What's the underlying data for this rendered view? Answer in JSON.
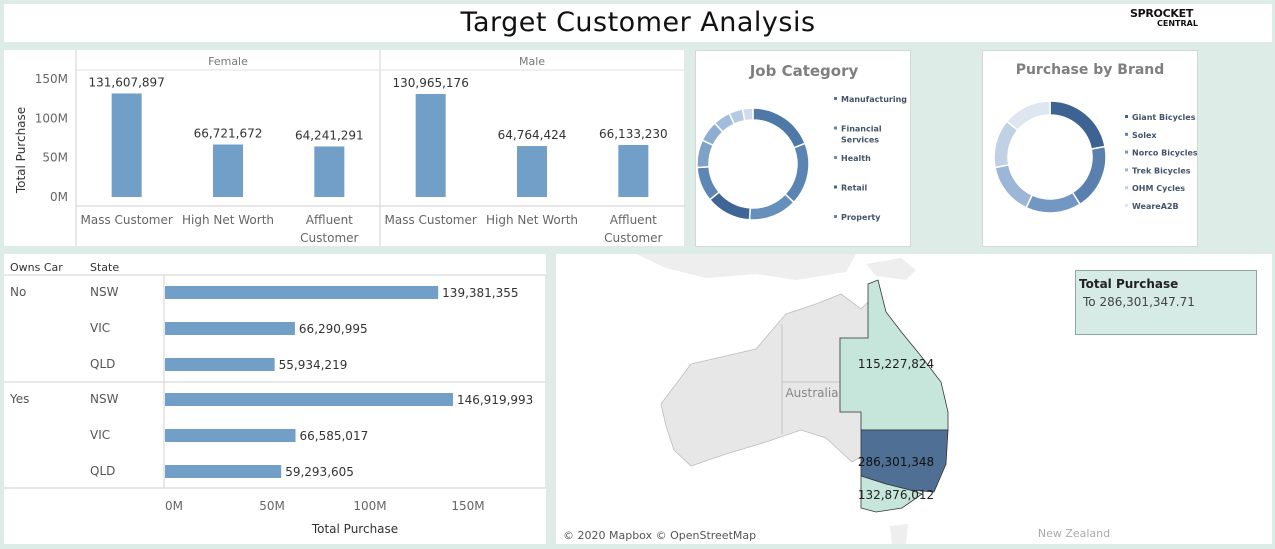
{
  "header": {
    "title": "Target Customer  Analysis",
    "logo_line1": "SPROCKET",
    "logo_line2": "CENTRAL"
  },
  "chart_data": [
    {
      "type": "bar",
      "panels": [
        "Female",
        "Male"
      ],
      "categories": [
        "Mass Customer",
        "High Net Worth",
        "Affluent Customer"
      ],
      "series": [
        {
          "name": "Female",
          "values": [
            131607897,
            66721672,
            64241291
          ],
          "labels": [
            "131,607,897",
            "66,721,672",
            "64,241,291"
          ]
        },
        {
          "name": "Male",
          "values": [
            130965176,
            64764424,
            66133230
          ],
          "labels": [
            "130,965,176",
            "64,764,424",
            "66,133,230"
          ]
        }
      ],
      "ylabel": "Total Purchase",
      "yticks": [
        "0M",
        "50M",
        "100M",
        "150M"
      ],
      "ytick_values": [
        0,
        50000000,
        100000000,
        150000000
      ],
      "ylim": [
        0,
        150000000
      ],
      "color": "#729fc7"
    },
    {
      "type": "pie",
      "title": "Job Category",
      "legend": [
        "Manufacturing",
        "Financial Services",
        "Health",
        "Retail",
        "Property"
      ],
      "values": [
        19,
        18,
        14,
        13,
        10,
        8,
        6,
        5,
        4,
        3
      ],
      "colors": [
        "#4e79a7",
        "#5a84b3",
        "#6690bc",
        "#3f6596",
        "#5c86b6",
        "#7fa2c9",
        "#8daed2",
        "#a1bddb",
        "#b6cbe3",
        "#cfdcec"
      ]
    },
    {
      "type": "pie",
      "title": "Purchase by Brand",
      "legend": [
        "Giant Bicycles",
        "Solex",
        "Norco Bicycles",
        "Trek Bicycles",
        "OHM Cycles",
        "WeareA2B"
      ],
      "values": [
        22,
        19,
        16,
        15,
        14,
        14
      ],
      "colors": [
        "#3d6393",
        "#5a80b0",
        "#7397c3",
        "#9cb6d7",
        "#c0d1e6",
        "#dde6f1"
      ]
    },
    {
      "type": "bar",
      "orientation": "horizontal",
      "row_headers": [
        "Owns Car",
        "State"
      ],
      "groups": [
        {
          "name": "No",
          "states": [
            "NSW",
            "VIC",
            "QLD"
          ],
          "values": [
            139381355,
            66290995,
            55934219
          ],
          "labels": [
            "139,381,355",
            "66,290,995",
            "55,934,219"
          ]
        },
        {
          "name": "Yes",
          "states": [
            "NSW",
            "VIC",
            "QLD"
          ],
          "values": [
            146919993,
            66585017,
            59293605
          ],
          "labels": [
            "146,919,993",
            "66,585,017",
            "59,293,605"
          ]
        }
      ],
      "xlabel": "Total Purchase",
      "xticks": [
        "0M",
        "50M",
        "100M",
        "150M"
      ],
      "xtick_values": [
        0,
        50000000,
        100000000,
        150000000
      ],
      "xlim": [
        0,
        150000000
      ],
      "color": "#729fc7"
    }
  ],
  "map": {
    "country_label": "Australia",
    "nz_label": "New Zealand",
    "regions": [
      {
        "name": "QLD",
        "label": "115,227,824",
        "color": "#c6e6dc"
      },
      {
        "name": "NSW",
        "label": "286,301,348",
        "color": "#4f6f94"
      },
      {
        "name": "VIC",
        "label": "132,876,012",
        "color": "#c6e6dc"
      }
    ],
    "tooltip_title": "Total Purchase",
    "tooltip_value": "To 286,301,347.71",
    "attribution": "© 2020 Mapbox © OpenStreetMap"
  }
}
